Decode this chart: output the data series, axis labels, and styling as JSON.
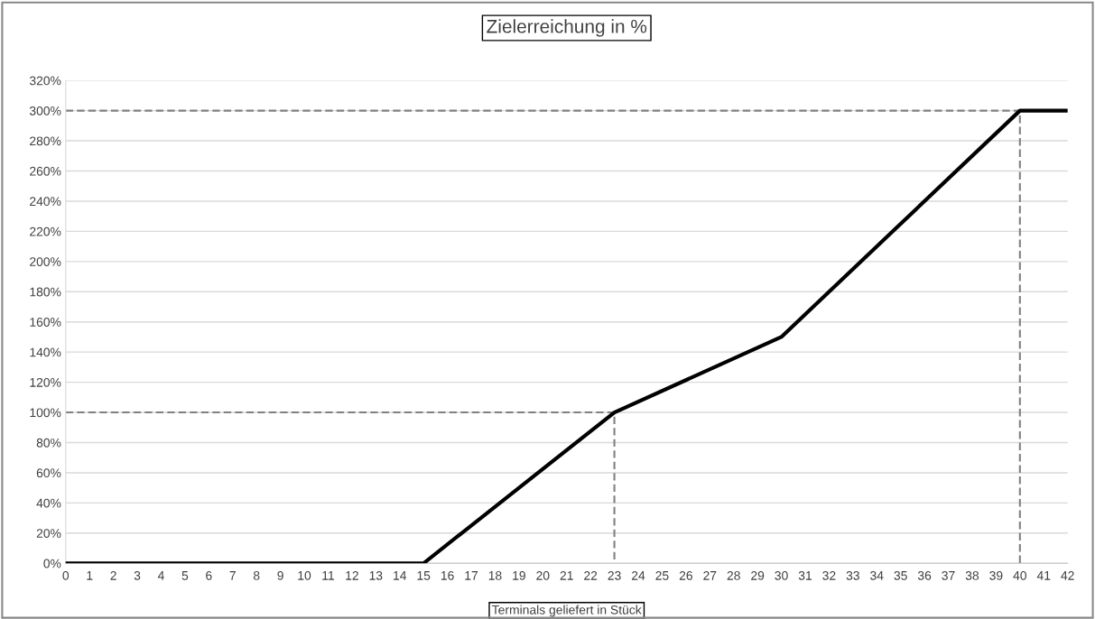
{
  "chart_data": {
    "type": "line",
    "title": "Zielerreichung in %",
    "xlabel": "Terminals geliefert in Stück",
    "xlim": [
      0,
      42
    ],
    "xticks": [
      0,
      1,
      2,
      3,
      4,
      5,
      6,
      7,
      8,
      9,
      10,
      11,
      12,
      13,
      14,
      15,
      16,
      17,
      18,
      19,
      20,
      21,
      22,
      23,
      24,
      25,
      26,
      27,
      28,
      29,
      30,
      31,
      32,
      33,
      34,
      35,
      36,
      37,
      38,
      39,
      40,
      41,
      42
    ],
    "ylim": [
      0,
      320
    ],
    "yticks": [
      {
        "value": 0,
        "label": "0%"
      },
      {
        "value": 20,
        "label": "20%"
      },
      {
        "value": 40,
        "label": "40%"
      },
      {
        "value": 60,
        "label": "60%"
      },
      {
        "value": 80,
        "label": "80%"
      },
      {
        "value": 100,
        "label": "100%"
      },
      {
        "value": 120,
        "label": "120%"
      },
      {
        "value": 140,
        "label": "140%"
      },
      {
        "value": 160,
        "label": "160%"
      },
      {
        "value": 180,
        "label": "180%"
      },
      {
        "value": 200,
        "label": "200%"
      },
      {
        "value": 220,
        "label": "220%"
      },
      {
        "value": 240,
        "label": "240%"
      },
      {
        "value": 260,
        "label": "260%"
      },
      {
        "value": 280,
        "label": "280%"
      },
      {
        "value": 300,
        "label": "300%"
      },
      {
        "value": 320,
        "label": "320%"
      }
    ],
    "grid": "y",
    "marker": "none",
    "series": [
      {
        "color": "#000000",
        "line_style": "solid",
        "x": [
          0,
          15,
          23,
          30,
          40,
          42
        ],
        "values": [
          0,
          0,
          100,
          150,
          300,
          300
        ]
      },
      {
        "color": "#808080",
        "line_style": "dashed",
        "x": [
          0,
          23,
          23
        ],
        "values": [
          100,
          100,
          0
        ]
      },
      {
        "color": "#808080",
        "line_style": "dashed",
        "x": [
          0,
          40,
          40
        ],
        "values": [
          300,
          300,
          0
        ]
      }
    ]
  }
}
